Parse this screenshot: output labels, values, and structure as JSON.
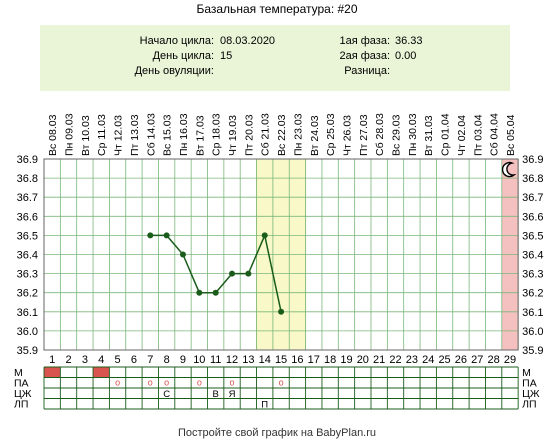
{
  "title": "Базальная температура: #20",
  "info": {
    "cycle_start_label": "Начало цикла:",
    "cycle_start_value": "08.03.2020",
    "cycle_day_label": "День цикла:",
    "cycle_day_value": "15",
    "ovulation_day_label": "День овуляции:",
    "ovulation_day_value": "",
    "phase1_label": "1ая фаза:",
    "phase1_value": "36.33",
    "phase2_label": "2ая фаза:",
    "phase2_value": "0.00",
    "diff_label": "Разница:",
    "diff_value": ""
  },
  "colors": {
    "line": "#1a5c1a",
    "grid": "#7ab77a",
    "highlight": "#f8f8c8",
    "highlight_border": "#e0e090",
    "today": "#f5c0c0",
    "menstruation": "#d9534f",
    "marker": "#d9534f"
  },
  "icons": {
    "night": "crescent-moon-icon"
  },
  "chart_data": {
    "type": "line",
    "dates": [
      "Вс 08.03",
      "Пн 09.03",
      "Вт 10.03",
      "Ср 11.03",
      "Чт 12.03",
      "Пт 13.03",
      "Сб 14.03",
      "Вс 15.03",
      "Пн 16.03",
      "Вт 17.03",
      "Ср 18.03",
      "Чт 19.03",
      "Пт 20.03",
      "Сб 21.03",
      "Вс 22.03",
      "Пн 23.03",
      "Вт 24.03",
      "Ср 25.03",
      "Чт 26.03",
      "Пт 27.03",
      "Сб 28.03",
      "Вс 29.03",
      "Пн 30.03",
      "Вт 31.03",
      "Ср 01.04",
      "Чт 02.04",
      "Пт 03.04",
      "Сб 04.04",
      "Вс 05.04"
    ],
    "days": [
      "1",
      "2",
      "3",
      "4",
      "5",
      "6",
      "7",
      "8",
      "9",
      "10",
      "11",
      "12",
      "13",
      "14",
      "15",
      "16",
      "17",
      "18",
      "19",
      "20",
      "21",
      "22",
      "23",
      "24",
      "25",
      "26",
      "27",
      "28",
      "29"
    ],
    "y_ticks": [
      "36.9",
      "36.8",
      "36.7",
      "36.6",
      "36.5",
      "36.4",
      "36.3",
      "36.2",
      "36.1",
      "36.0",
      "35.9"
    ],
    "ylim": [
      35.9,
      36.9
    ],
    "series": [
      {
        "points": [
          [
            7,
            36.5
          ],
          [
            8,
            36.5
          ],
          [
            9,
            36.4
          ],
          [
            10,
            36.2
          ],
          [
            11,
            36.2
          ],
          [
            12,
            36.3
          ],
          [
            13,
            36.3
          ],
          [
            14,
            36.5
          ],
          [
            15,
            36.1
          ]
        ]
      }
    ],
    "highlight_days": [
      14,
      15,
      16
    ],
    "today_day": 29,
    "grid": true
  },
  "rows": {
    "labels": [
      "М",
      "ПА",
      "ЦЖ",
      "ЛП"
    ],
    "m_days": [
      1,
      4
    ],
    "pa_days": [
      5,
      7,
      8,
      10,
      12,
      15
    ],
    "pa_symbol": "о",
    "cells": [
      {
        "row": 2,
        "day": 8,
        "text": "С"
      },
      {
        "row": 2,
        "day": 11,
        "text": "В"
      },
      {
        "row": 2,
        "day": 12,
        "text": "Я"
      },
      {
        "row": 3,
        "day": 14,
        "text": "П"
      }
    ]
  },
  "footer": "Постройте свой график на BabyPlan.ru"
}
